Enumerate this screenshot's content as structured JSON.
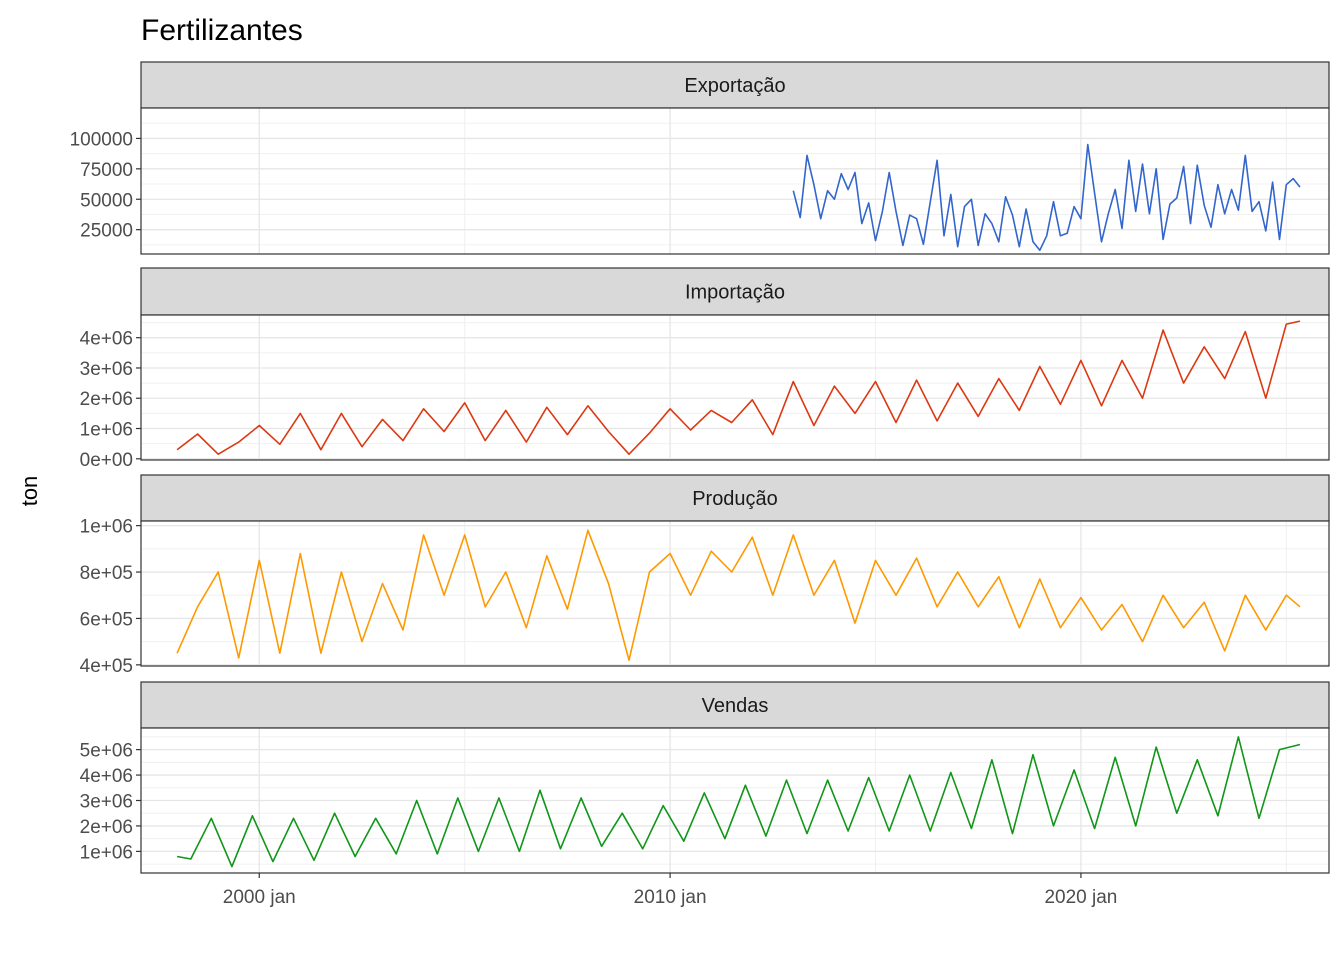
{
  "chart_data": {
    "type": "line",
    "title": "Fertilizantes",
    "ylabel": "ton",
    "xlabel": "",
    "x_ticks": [
      "2000 jan",
      "2010 jan",
      "2020 jan"
    ],
    "x_range": [
      "1997-02-15",
      "2026-01-15"
    ],
    "grid": true,
    "legend": "none",
    "panels": [
      {
        "name": "Exportação",
        "color": "#3366cc",
        "ylim": [
          5000,
          125000
        ],
        "y_ticks": [
          25000,
          50000,
          75000,
          100000
        ],
        "y_tick_labels": [
          "25000",
          "50000",
          "75000",
          "100000"
        ],
        "x": [
          "2013-01",
          "2013-03",
          "2013-05",
          "2013-07",
          "2013-09",
          "2013-11",
          "2014-01",
          "2014-03",
          "2014-05",
          "2014-07",
          "2014-09",
          "2014-11",
          "2015-01",
          "2015-03",
          "2015-05",
          "2015-07",
          "2015-09",
          "2015-11",
          "2016-01",
          "2016-03",
          "2016-05",
          "2016-07",
          "2016-09",
          "2016-11",
          "2017-01",
          "2017-03",
          "2017-05",
          "2017-07",
          "2017-09",
          "2017-11",
          "2018-01",
          "2018-03",
          "2018-05",
          "2018-07",
          "2018-09",
          "2018-11",
          "2019-01",
          "2019-03",
          "2019-05",
          "2019-07",
          "2019-09",
          "2019-11",
          "2020-01",
          "2020-03",
          "2020-05",
          "2020-07",
          "2020-09",
          "2020-11",
          "2021-01",
          "2021-03",
          "2021-05",
          "2021-07",
          "2021-09",
          "2021-11",
          "2022-01",
          "2022-03",
          "2022-05",
          "2022-07",
          "2022-09",
          "2022-11",
          "2023-01",
          "2023-03",
          "2023-05",
          "2023-07",
          "2023-09",
          "2023-11",
          "2024-01",
          "2024-03",
          "2024-05",
          "2024-07",
          "2024-09",
          "2024-11",
          "2025-01",
          "2025-03",
          "2025-05"
        ],
        "y": [
          57000,
          35000,
          86000,
          62000,
          34000,
          57000,
          50000,
          71000,
          58000,
          72000,
          30000,
          47000,
          16000,
          40000,
          72000,
          40000,
          12000,
          37000,
          34000,
          13000,
          48000,
          82000,
          20000,
          54000,
          11000,
          44000,
          50000,
          12000,
          38000,
          30000,
          15000,
          52000,
          37000,
          11000,
          42000,
          15000,
          8000,
          20000,
          48000,
          20000,
          22000,
          44000,
          34000,
          95000,
          55000,
          15000,
          38000,
          58000,
          26000,
          82000,
          40000,
          79000,
          38000,
          75000,
          17000,
          46000,
          51000,
          77000,
          30000,
          78000,
          45000,
          27000,
          62000,
          38000,
          58000,
          41000,
          86000,
          40000,
          48000,
          24000,
          64000,
          17000,
          62000,
          67000,
          60000
        ]
      },
      {
        "name": "Importação",
        "color": "#dc3912",
        "ylim": [
          -40000,
          4750000
        ],
        "y_ticks": [
          0,
          1000000,
          2000000,
          3000000,
          4000000
        ],
        "y_tick_labels": [
          "0e+00",
          "1e+06",
          "2e+06",
          "3e+06",
          "4e+06"
        ],
        "x": [
          "1998-01",
          "1998-07",
          "1999-01",
          "1999-07",
          "2000-01",
          "2000-07",
          "2001-01",
          "2001-07",
          "2002-01",
          "2002-07",
          "2003-01",
          "2003-07",
          "2004-01",
          "2004-07",
          "2005-01",
          "2005-07",
          "2006-01",
          "2006-07",
          "2007-01",
          "2007-07",
          "2008-01",
          "2008-07",
          "2009-01",
          "2009-07",
          "2010-01",
          "2010-07",
          "2011-01",
          "2011-07",
          "2012-01",
          "2012-07",
          "2013-01",
          "2013-07",
          "2014-01",
          "2014-07",
          "2015-01",
          "2015-07",
          "2016-01",
          "2016-07",
          "2017-01",
          "2017-07",
          "2018-01",
          "2018-07",
          "2019-01",
          "2019-07",
          "2020-01",
          "2020-07",
          "2021-01",
          "2021-07",
          "2022-01",
          "2022-07",
          "2023-01",
          "2023-07",
          "2024-01",
          "2024-07",
          "2025-01",
          "2025-05"
        ],
        "y": [
          300000,
          820000,
          150000,
          550000,
          1100000,
          480000,
          1500000,
          300000,
          1500000,
          400000,
          1300000,
          600000,
          1650000,
          900000,
          1850000,
          600000,
          1600000,
          550000,
          1700000,
          800000,
          1750000,
          900000,
          150000,
          850000,
          1650000,
          950000,
          1600000,
          1200000,
          1950000,
          800000,
          2550000,
          1100000,
          2400000,
          1500000,
          2550000,
          1200000,
          2600000,
          1250000,
          2500000,
          1400000,
          2650000,
          1600000,
          3050000,
          1800000,
          3250000,
          1750000,
          3250000,
          2000000,
          4250000,
          2500000,
          3700000,
          2650000,
          4200000,
          2000000,
          4450000,
          4550000
        ]
      },
      {
        "name": "Produção",
        "color": "#ff9900",
        "ylim": [
          395000,
          1020000
        ],
        "y_ticks": [
          400000,
          600000,
          800000,
          1000000
        ],
        "y_tick_labels": [
          "4e+05",
          "6e+05",
          "8e+05",
          "1e+06"
        ],
        "x": [
          "1998-01",
          "1998-07",
          "1999-01",
          "1999-07",
          "2000-01",
          "2000-07",
          "2001-01",
          "2001-07",
          "2002-01",
          "2002-07",
          "2003-01",
          "2003-07",
          "2004-01",
          "2004-07",
          "2005-01",
          "2005-07",
          "2006-01",
          "2006-07",
          "2007-01",
          "2007-07",
          "2008-01",
          "2008-07",
          "2009-01",
          "2009-07",
          "2010-01",
          "2010-07",
          "2011-01",
          "2011-07",
          "2012-01",
          "2012-07",
          "2013-01",
          "2013-07",
          "2014-01",
          "2014-07",
          "2015-01",
          "2015-07",
          "2016-01",
          "2016-07",
          "2017-01",
          "2017-07",
          "2018-01",
          "2018-07",
          "2019-01",
          "2019-07",
          "2020-01",
          "2020-07",
          "2021-01",
          "2021-07",
          "2022-01",
          "2022-07",
          "2023-01",
          "2023-07",
          "2024-01",
          "2024-07",
          "2025-01",
          "2025-05"
        ],
        "y": [
          450000,
          650000,
          800000,
          430000,
          850000,
          450000,
          880000,
          450000,
          800000,
          500000,
          750000,
          550000,
          960000,
          700000,
          960000,
          650000,
          800000,
          560000,
          870000,
          640000,
          980000,
          750000,
          420000,
          800000,
          880000,
          700000,
          890000,
          800000,
          950000,
          700000,
          960000,
          700000,
          850000,
          580000,
          850000,
          700000,
          860000,
          650000,
          800000,
          650000,
          780000,
          560000,
          770000,
          560000,
          690000,
          550000,
          660000,
          500000,
          700000,
          560000,
          670000,
          460000,
          700000,
          550000,
          700000,
          650000
        ]
      },
      {
        "name": "Vendas",
        "color": "#109618",
        "ylim": [
          150000,
          5850000
        ],
        "y_ticks": [
          1000000,
          2000000,
          3000000,
          4000000,
          5000000
        ],
        "y_tick_labels": [
          "1e+06",
          "2e+06",
          "3e+06",
          "4e+06",
          "5e+06"
        ],
        "x": [
          "1998-01",
          "1998-05",
          "1998-11",
          "1999-05",
          "1999-11",
          "2000-05",
          "2000-11",
          "2001-05",
          "2001-11",
          "2002-05",
          "2002-11",
          "2003-05",
          "2003-11",
          "2004-05",
          "2004-11",
          "2005-05",
          "2005-11",
          "2006-05",
          "2006-11",
          "2007-05",
          "2007-11",
          "2008-05",
          "2008-11",
          "2009-05",
          "2009-11",
          "2010-05",
          "2010-11",
          "2011-05",
          "2011-11",
          "2012-05",
          "2012-11",
          "2013-05",
          "2013-11",
          "2014-05",
          "2014-11",
          "2015-05",
          "2015-11",
          "2016-05",
          "2016-11",
          "2017-05",
          "2017-11",
          "2018-05",
          "2018-11",
          "2019-05",
          "2019-11",
          "2020-05",
          "2020-11",
          "2021-05",
          "2021-11",
          "2022-05",
          "2022-11",
          "2023-05",
          "2023-11",
          "2024-05",
          "2024-11",
          "2025-05"
        ],
        "y": [
          800000,
          700000,
          2300000,
          400000,
          2400000,
          600000,
          2300000,
          650000,
          2500000,
          800000,
          2300000,
          900000,
          3000000,
          900000,
          3100000,
          1000000,
          3100000,
          1000000,
          3400000,
          1100000,
          3100000,
          1200000,
          2500000,
          1100000,
          2800000,
          1400000,
          3300000,
          1500000,
          3600000,
          1600000,
          3800000,
          1700000,
          3800000,
          1800000,
          3900000,
          1800000,
          4000000,
          1800000,
          4100000,
          1900000,
          4600000,
          1700000,
          4800000,
          2000000,
          4200000,
          1900000,
          4700000,
          2000000,
          5100000,
          2500000,
          4600000,
          2400000,
          5500000,
          2300000,
          5000000,
          5200000
        ]
      }
    ]
  }
}
